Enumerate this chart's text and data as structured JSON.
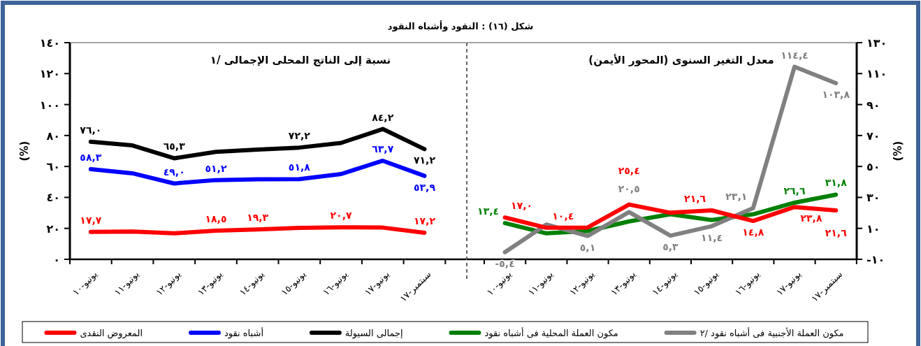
{
  "chart_data": [
    {
      "type": "line",
      "title": "شكل (١٦) : النقود وأشباه النقود",
      "subtitle": "نسبة إلى الناتج المحلى الإجمالى /١",
      "ylabel": "(%)",
      "legend": "bottom",
      "grid": false,
      "marker": "none",
      "categories": [
        "يونيو-١٠",
        "يونيو-١١",
        "يونيو-١٢",
        "يونيو-١٣",
        "يونيو-١٤",
        "يونيو-١٥",
        "يونيو-١٦",
        "يونيو-١٧",
        "سبتمبر-١٧"
      ],
      "ylim": [
        0,
        140
      ],
      "yticks": [
        {
          "value": 0,
          "label": "٠"
        },
        {
          "value": 20,
          "label": "٢٠"
        },
        {
          "value": 40,
          "label": "٤٠"
        },
        {
          "value": 60,
          "label": "٦٠"
        },
        {
          "value": 80,
          "label": "٨٠"
        },
        {
          "value": 100,
          "label": "١٠٠"
        },
        {
          "value": 120,
          "label": "١٢٠"
        },
        {
          "value": 140,
          "label": "١٤٠"
        }
      ],
      "series": [
        {
          "name": "المعروض النقدى",
          "color": "#ff0000",
          "values": [
            17.7,
            18.0,
            16.8,
            18.5,
            19.3,
            20.3,
            20.7,
            20.5,
            17.2
          ],
          "value_labels": [
            "١٧,٧",
            null,
            null,
            "١٨,٥",
            "١٩,٣",
            null,
            "٢٠,٧",
            null,
            "١٧,٢"
          ]
        },
        {
          "name": "أشباه نقود",
          "color": "#0000ff",
          "values": [
            58.3,
            55.6,
            49.0,
            51.2,
            51.7,
            51.8,
            55.1,
            63.7,
            53.9
          ],
          "value_labels": [
            "٥٨,٣",
            null,
            "٤٩,٠",
            "٥١,٢",
            null,
            "٥١,٨",
            null,
            "٦٣,٧",
            "٥٣,٩"
          ]
        },
        {
          "name": "إجمالى السيولة",
          "color": "#000000",
          "values": [
            76.0,
            73.6,
            65.3,
            69.4,
            70.9,
            72.2,
            75.2,
            84.2,
            71.2
          ],
          "value_labels": [
            "٧٦,٠",
            null,
            "٦٥,٣",
            null,
            null,
            "٧٢,٢",
            null,
            "٨٤,٢",
            "٧١,٢"
          ]
        }
      ]
    },
    {
      "type": "line",
      "subtitle": "معدل التغير السنوى (المحور الأيمن)",
      "y2label": "(%)",
      "legend": "bottom",
      "grid": false,
      "marker": "none",
      "categories": [
        "يونيو-١٠",
        "يونيو-١١",
        "يونيو-١٢",
        "يونيو-١٣",
        "يونيو-١٤",
        "يونيو-١٥",
        "يونيو-١٦",
        "يونيو-١٧",
        "سبتمبر-١٧"
      ],
      "y2lim": [
        -10,
        130
      ],
      "y2ticks": [
        {
          "value": -10,
          "label": "-١٠"
        },
        {
          "value": 10,
          "label": "١٠"
        },
        {
          "value": 30,
          "label": "٣٠"
        },
        {
          "value": 50,
          "label": "٥٠"
        },
        {
          "value": 70,
          "label": "٧٠"
        },
        {
          "value": 90,
          "label": "٩٠"
        },
        {
          "value": 110,
          "label": "١١٠"
        },
        {
          "value": 130,
          "label": "١٣٠"
        }
      ],
      "series": [
        {
          "name": "مكون العملة المحلية فى أشباه نقود",
          "color": "#008000",
          "axis": "y2",
          "values": [
            13.4,
            6.8,
            8.3,
            14.5,
            19.1,
            15.4,
            19.1,
            26.6,
            31.8
          ],
          "value_labels": [
            "١٣,٤",
            null,
            null,
            null,
            null,
            null,
            null,
            "٢٦,٦",
            "٣١,٨"
          ]
        },
        {
          "name": "مكون العملة الأجنبية فى أشباه نقود /٢",
          "color": "#808080",
          "axis": "y2",
          "values": [
            -5.4,
            12.5,
            5.1,
            20.5,
            5.3,
            11.4,
            23.1,
            114.4,
            103.8
          ],
          "value_labels": [
            "-٥,٤",
            null,
            "٥,١",
            "٢٠,٥",
            "٥,٣",
            "١١,٤",
            "٢٣,١",
            "١١٤,٤",
            "١٠٣,٨"
          ]
        },
        {
          "color": "#ff0000",
          "axis": "y2",
          "values": [
            17.0,
            10.4,
            10.6,
            25.4,
            20.1,
            21.6,
            14.8,
            23.8,
            21.6
          ],
          "value_labels": [
            "١٧,٠",
            "١٠,٤",
            null,
            "٢٥,٤",
            null,
            "٢١,٦",
            "١٤,٨",
            "٢٣,٨",
            "٢١,٦"
          ]
        }
      ]
    }
  ]
}
